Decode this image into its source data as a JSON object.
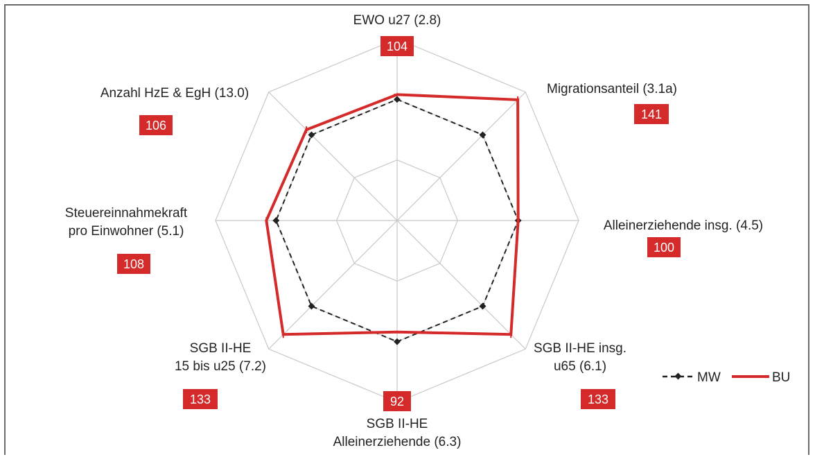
{
  "chart_data": {
    "type": "radar",
    "axes": [
      {
        "label_lines": [
          "EWO u27 (2.8)"
        ],
        "badge": "104"
      },
      {
        "label_lines": [
          "Migrationsanteil (3.1a)"
        ],
        "badge": "141"
      },
      {
        "label_lines": [
          "Alleinerziehende insg. (4.5)"
        ],
        "badge": "100"
      },
      {
        "label_lines": [
          "SGB II-HE insg.",
          "u65 (6.1)"
        ],
        "badge": "133"
      },
      {
        "label_lines": [
          "SGB II-HE",
          "Alleinerziehende (6.3)"
        ],
        "badge": "92"
      },
      {
        "label_lines": [
          "SGB II-HE",
          "15 bis u25 (7.2)"
        ],
        "badge": "133"
      },
      {
        "label_lines": [
          "Steuereinnahmekraft",
          "pro Einwohner (5.1)"
        ],
        "badge": "108"
      },
      {
        "label_lines": [
          "Anzahl HzE & EgH (13.0)"
        ],
        "badge": "106"
      }
    ],
    "rmax": 150,
    "grid_levels": [
      50,
      100,
      150
    ],
    "series": [
      {
        "name": "MW",
        "values": [
          100,
          100,
          100,
          100,
          100,
          100,
          100,
          100
        ],
        "color": "#222222",
        "style": "dashed-diamond"
      },
      {
        "name": "BU",
        "values": [
          104,
          141,
          100,
          133,
          92,
          133,
          108,
          106
        ],
        "color": "#d42a2a",
        "style": "solid"
      }
    ],
    "legend_position": "bottom-right",
    "badge_color": "#d42a2a"
  }
}
